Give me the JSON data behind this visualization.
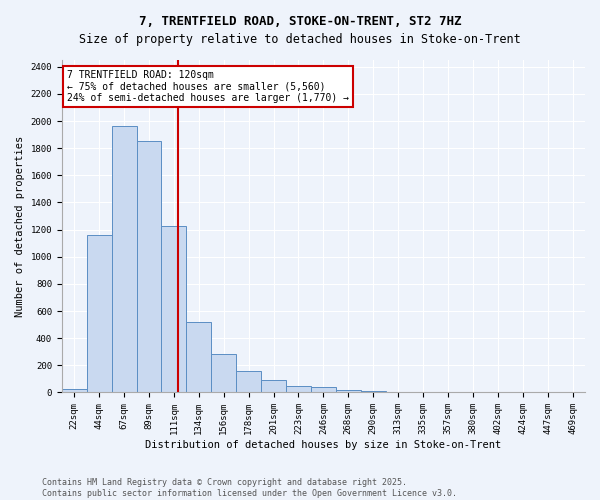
{
  "title": "7, TRENTFIELD ROAD, STOKE-ON-TRENT, ST2 7HZ",
  "subtitle": "Size of property relative to detached houses in Stoke-on-Trent",
  "xlabel": "Distribution of detached houses by size in Stoke-on-Trent",
  "ylabel": "Number of detached properties",
  "bin_labels": [
    "22sqm",
    "44sqm",
    "67sqm",
    "89sqm",
    "111sqm",
    "134sqm",
    "156sqm",
    "178sqm",
    "201sqm",
    "223sqm",
    "246sqm",
    "268sqm",
    "290sqm",
    "313sqm",
    "335sqm",
    "357sqm",
    "380sqm",
    "402sqm",
    "424sqm",
    "447sqm",
    "469sqm"
  ],
  "bin_values": [
    25,
    1160,
    1960,
    1850,
    1230,
    520,
    280,
    155,
    90,
    45,
    42,
    18,
    12,
    5,
    3,
    2,
    2,
    1,
    1,
    1,
    1
  ],
  "bar_color": "#c9d9f0",
  "bar_edge_color": "#5b8ec4",
  "property_line_bin_index": 4.15,
  "annotation_text": "7 TRENTFIELD ROAD: 120sqm\n← 75% of detached houses are smaller (5,560)\n24% of semi-detached houses are larger (1,770) →",
  "annotation_box_color": "#ffffff",
  "annotation_box_edge_color": "#cc0000",
  "vline_color": "#cc0000",
  "footnote1": "Contains HM Land Registry data © Crown copyright and database right 2025.",
  "footnote2": "Contains public sector information licensed under the Open Government Licence v3.0.",
  "ylim": [
    0,
    2450
  ],
  "yticks": [
    0,
    200,
    400,
    600,
    800,
    1000,
    1200,
    1400,
    1600,
    1800,
    2000,
    2200,
    2400
  ],
  "background_color": "#eef3fb",
  "grid_color": "#ffffff",
  "title_fontsize": 9,
  "subtitle_fontsize": 8.5,
  "axis_label_fontsize": 7.5,
  "tick_fontsize": 6.5,
  "annotation_fontsize": 7,
  "footnote_fontsize": 6
}
